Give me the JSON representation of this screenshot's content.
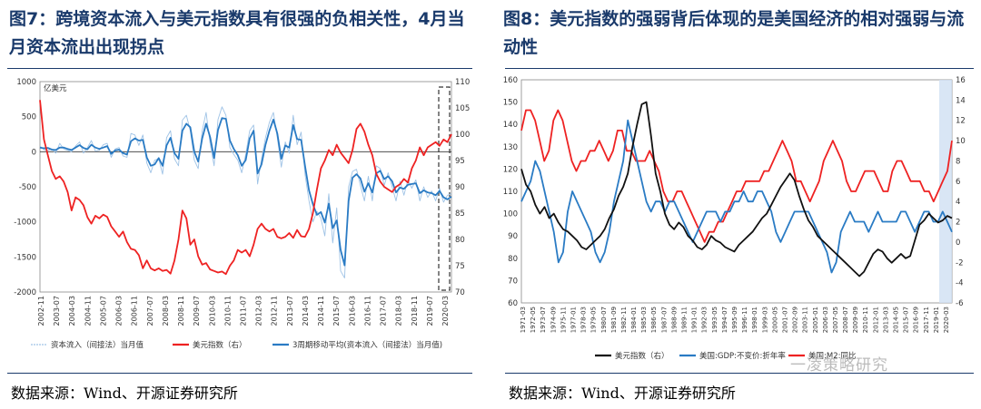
{
  "chart_data": [
    {
      "type": "line",
      "title": "图7：跨境资本流入与美元指数具有很强的负相关性，4月当月资本流出出现拐点",
      "left_axis": {
        "unit": "亿美元",
        "range": [
          -2000,
          1000
        ],
        "ticks": [
          "1000",
          "500",
          "0",
          "-500",
          "-1000",
          "-1500",
          "-2000"
        ]
      },
      "right_axis": {
        "range": [
          70,
          110
        ],
        "ticks": [
          "110",
          "105",
          "100",
          "95",
          "90",
          "85",
          "80",
          "75",
          "70"
        ]
      },
      "x_ticks": [
        "2002-11",
        "2003-07",
        "2004-03",
        "2004-11",
        "2005-07",
        "2006-03",
        "2006-11",
        "2007-07",
        "2008-03",
        "2008-11",
        "2009-07",
        "2010-03",
        "2010-11",
        "2011-07",
        "2012-03",
        "2012-11",
        "2013-07",
        "2014-03",
        "2014-11",
        "2015-07",
        "2016-03",
        "2016-11",
        "2017-07",
        "2018-03",
        "2018-11",
        "2019-07",
        "2020-03"
      ],
      "legend": [
        "资本流入（间接法）当月值",
        "美元指数（右）",
        "3周期移动平均(资本流入（间接法）当月值)"
      ],
      "series": [
        {
          "name": "美元指数（右）",
          "color": "#ee2222",
          "axis": "right",
          "values": [
            106.5,
            99,
            96,
            93,
            91.5,
            92,
            91,
            89,
            85.5,
            88,
            87.5,
            86.5,
            84.2,
            83,
            84.5,
            84,
            84.7,
            84.3,
            82.5,
            81.5,
            80.5,
            81.5,
            79.5,
            78.2,
            78,
            77,
            74.5,
            76,
            74.5,
            74.1,
            74.5,
            74,
            74.2,
            73.5,
            76,
            80,
            85.5,
            84,
            79,
            80,
            76.8,
            75.2,
            75.5,
            74.3,
            74,
            73.7,
            73.9,
            73.4,
            75,
            76,
            78,
            77.5,
            78,
            76.8,
            79,
            82,
            83,
            82,
            81.5,
            82,
            80.5,
            80.2,
            80.5,
            81.2,
            80.3,
            81.8,
            80.6,
            80.5,
            82,
            85,
            89.5,
            93.5,
            95,
            97,
            96,
            98,
            96.5,
            95.5,
            94.5,
            97,
            101,
            102,
            100.5,
            98,
            96,
            92.5,
            91,
            90,
            89.5,
            89,
            90,
            90.5,
            91.5,
            90.8,
            93.5,
            95,
            97.5,
            96,
            97.5,
            98,
            98.5,
            97.8,
            99,
            98.5,
            100
          ]
        },
        {
          "name": "3周期移动平均(资本流入（间接法）当月值)",
          "color": "#2a7bc4",
          "axis": "left",
          "values": [
            60,
            50,
            55,
            30,
            25,
            60,
            60,
            40,
            25,
            60,
            95,
            55,
            35,
            100,
            60,
            40,
            60,
            80,
            -30,
            20,
            30,
            -20,
            -40,
            150,
            190,
            160,
            170,
            -80,
            -200,
            -180,
            -90,
            -200,
            90,
            200,
            -20,
            -100,
            300,
            400,
            350,
            0,
            -140,
            190,
            400,
            210,
            -90,
            310,
            480,
            470,
            160,
            40,
            -50,
            -200,
            -120,
            190,
            300,
            -310,
            -180,
            100,
            300,
            460,
            260,
            -100,
            90,
            60,
            380,
            180,
            170,
            -200,
            -550,
            -750,
            -900,
            -860,
            -1010,
            -740,
            -1090,
            -980,
            -1400,
            -1620,
            -700,
            -370,
            -320,
            -380,
            -570,
            -450,
            -580,
            -310,
            -270,
            -390,
            -350,
            -420,
            -580,
            -510,
            -530,
            -470,
            -460,
            -450,
            -590,
            -550,
            -580,
            -590,
            -620,
            -560,
            -650,
            -680,
            -640
          ]
        },
        {
          "name": "资本流入（间接法）当月值",
          "color": "#9fc3e6",
          "axis": "left",
          "values": [
            80,
            30,
            20,
            40,
            -20,
            120,
            40,
            20,
            0,
            80,
            140,
            -20,
            60,
            160,
            10,
            20,
            100,
            120,
            -80,
            40,
            60,
            -60,
            -80,
            260,
            240,
            90,
            240,
            -160,
            -300,
            -120,
            -100,
            -320,
            200,
            300,
            -100,
            -200,
            450,
            520,
            300,
            -120,
            -240,
            300,
            560,
            120,
            -200,
            460,
            640,
            520,
            60,
            -40,
            -120,
            -300,
            -40,
            300,
            380,
            -460,
            -100,
            200,
            420,
            560,
            200,
            -220,
            140,
            -20,
            520,
            100,
            280,
            -320,
            -700,
            -1000,
            -850,
            -950,
            -1200,
            -600,
            -1300,
            -800,
            -1700,
            -1800,
            -500,
            -280,
            -250,
            -480,
            -700,
            -350,
            -700,
            -200,
            -240,
            -480,
            -300,
            -500,
            -700,
            -420,
            -620,
            -400,
            -520,
            -400,
            -700,
            -500,
            -650,
            -560,
            -700,
            -520,
            -720,
            -620,
            -600
          ]
        }
      ]
    },
    {
      "type": "line",
      "title": "图8：美元指数的强弱背后体现的是美国经济的相对强弱与流动性",
      "left_axis": {
        "range": [
          60,
          160
        ],
        "ticks": [
          "160",
          "150",
          "140",
          "130",
          "120",
          "110",
          "100",
          "90",
          "80",
          "70",
          "60"
        ]
      },
      "right_axis": {
        "range": [
          -6,
          16
        ],
        "ticks": [
          "16",
          "14",
          "12",
          "10",
          "8",
          "6",
          "4",
          "2",
          "0",
          "-2",
          "-4",
          "-6"
        ]
      },
      "x_ticks": [
        "1971-03",
        "1972-05",
        "1973-07",
        "1974-09",
        "1975-11",
        "1977-01",
        "1978-03",
        "1979-05",
        "1980-07",
        "1981-09",
        "1982-11",
        "1984-01",
        "1985-03",
        "1986-05",
        "1987-07",
        "1988-09",
        "1989-11",
        "1991-01",
        "1992-03",
        "1993-05",
        "1994-07",
        "1995-09",
        "1996-11",
        "1998-01",
        "1999-03",
        "2000-05",
        "2001-07",
        "2002-09",
        "2003-11",
        "2005-01",
        "2006-03",
        "2007-05",
        "2008-07",
        "2009-09",
        "2010-11",
        "2012-01",
        "2013-03",
        "2014-05",
        "2015-07",
        "2016-09",
        "2017-11",
        "2019-01",
        "2020-03"
      ],
      "legend": [
        "美元指数（右）",
        "美国:GDP:不变价:折年率",
        "美国:M2:同比"
      ],
      "series": [
        {
          "name": "美元指数（右）",
          "color": "#111111",
          "axis": "left",
          "values": [
            120,
            113,
            110,
            104,
            100,
            103,
            98,
            100,
            96,
            93,
            92,
            90,
            88,
            85,
            84,
            86,
            88,
            90,
            93,
            98,
            102,
            108,
            112,
            118,
            130,
            140,
            149,
            150,
            135,
            118,
            110,
            100,
            95,
            93,
            96,
            94,
            90,
            88,
            85,
            84,
            86,
            90,
            88,
            87,
            85,
            84,
            83,
            86,
            88,
            90,
            92,
            95,
            98,
            100,
            104,
            108,
            112,
            115,
            118,
            115,
            108,
            102,
            97,
            94,
            90,
            88,
            86,
            84,
            82,
            80,
            78,
            76,
            74,
            72,
            74,
            78,
            82,
            84,
            83,
            80,
            78,
            80,
            82,
            80,
            81,
            88,
            95,
            97,
            100,
            98,
            96,
            97,
            99,
            98
          ]
        },
        {
          "name": "美国:GDP:不变价:折年率",
          "color": "#2a7bc4",
          "axis": "right",
          "values": [
            4,
            5,
            6,
            8,
            7,
            5,
            3,
            1,
            -2,
            -1,
            3,
            5,
            4,
            3,
            2,
            1,
            -1,
            -2,
            -1,
            1,
            4,
            6,
            8,
            12,
            10,
            8,
            6,
            4,
            3,
            4,
            4,
            3,
            4,
            4,
            3,
            2,
            1,
            0,
            1,
            2,
            3,
            3,
            3,
            2,
            3,
            3,
            4,
            4,
            5,
            4,
            4,
            5,
            5,
            4,
            3,
            1,
            0,
            1,
            2,
            3,
            3,
            3,
            3,
            2,
            1,
            0,
            -1,
            -3,
            -2,
            1,
            2,
            3,
            2,
            2,
            2,
            1,
            2,
            3,
            2,
            2,
            2,
            2,
            3,
            3,
            2,
            1,
            2,
            3,
            3,
            2,
            2,
            3,
            2,
            1
          ]
        },
        {
          "name": "美国:M2:同比",
          "color": "#ee2222",
          "axis": "right",
          "values": [
            11,
            13,
            13,
            12,
            10,
            8,
            9,
            12,
            13,
            12,
            10,
            8,
            7,
            8,
            8,
            9,
            9,
            10,
            9,
            8,
            9,
            11,
            11,
            9,
            9,
            8,
            8,
            8,
            9,
            8,
            7,
            5,
            4,
            4,
            5,
            5,
            4,
            3,
            2,
            1,
            0,
            1,
            1,
            2,
            2,
            3,
            4,
            5,
            5,
            6,
            6,
            6,
            6,
            7,
            7,
            8,
            9,
            10,
            9,
            8,
            6,
            6,
            5,
            4,
            5,
            6,
            8,
            9,
            10,
            9,
            8,
            6,
            5,
            5,
            6,
            7,
            7,
            7,
            6,
            5,
            5,
            7,
            8,
            8,
            7,
            6,
            6,
            6,
            5,
            5,
            4,
            5,
            6,
            7,
            10
          ]
        }
      ]
    }
  ],
  "panel1": {
    "title": "图7：跨境资本流入与美元指数具有很强的负相关性，4月当月资本流出出现拐点",
    "source": "数据来源：Wind、开源证券研究所"
  },
  "panel2": {
    "title": "图8：美元指数的强弱背后体现的是美国经济的相对强弱与流动性",
    "source": "数据来源：Wind、开源证券研究所"
  },
  "watermark": "一凌策略研究"
}
